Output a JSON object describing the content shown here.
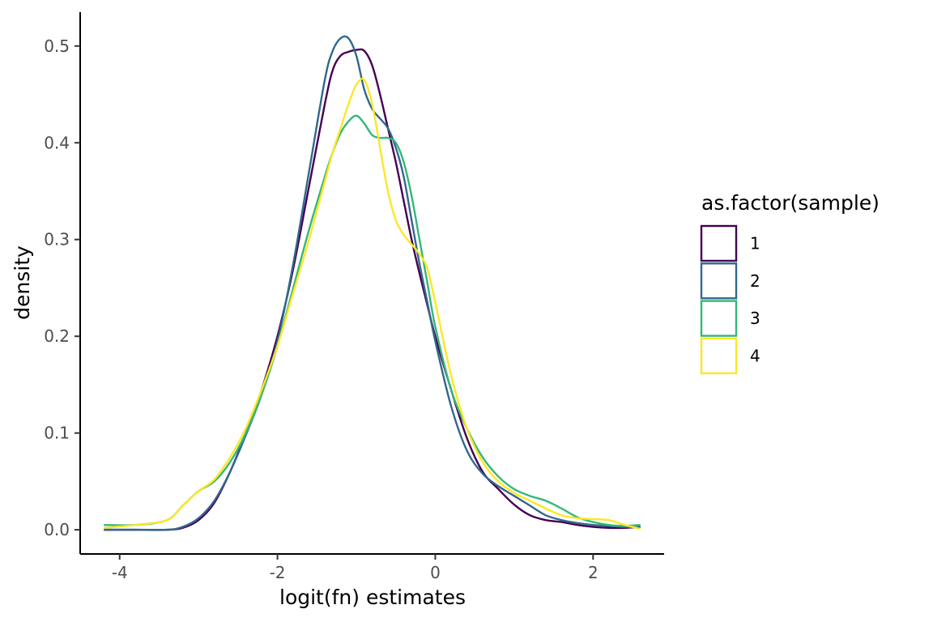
{
  "chart_data": {
    "type": "line",
    "title": "",
    "xlabel": "logit(fn) estimates",
    "ylabel": "density",
    "xlim": [
      -4.5,
      2.9
    ],
    "ylim": [
      -0.025,
      0.535
    ],
    "x_ticks": [
      -4,
      -2,
      0,
      2
    ],
    "y_ticks": [
      0.0,
      0.1,
      0.2,
      0.3,
      0.4,
      0.5
    ],
    "x_tick_labels": [
      "-4",
      "-2",
      "0",
      "2"
    ],
    "y_tick_labels": [
      "0.0",
      "0.1",
      "0.2",
      "0.3",
      "0.4",
      "0.5"
    ],
    "grid": false,
    "legend": {
      "title": "as.factor(sample)",
      "position": "right"
    },
    "series": [
      {
        "name": "1",
        "color": "#440154",
        "x": [
          -4.2,
          -3.8,
          -3.4,
          -3.2,
          -3.0,
          -2.8,
          -2.6,
          -2.4,
          -2.2,
          -2.0,
          -1.8,
          -1.6,
          -1.4,
          -1.3,
          -1.2,
          -1.1,
          -1.0,
          -0.9,
          -0.8,
          -0.7,
          -0.6,
          -0.5,
          -0.4,
          -0.3,
          -0.2,
          -0.1,
          0.0,
          0.2,
          0.4,
          0.6,
          0.8,
          1.0,
          1.2,
          1.4,
          1.6,
          1.8,
          2.0,
          2.2,
          2.4,
          2.6
        ],
        "y": [
          0.0,
          0.0,
          0.0,
          0.002,
          0.01,
          0.028,
          0.06,
          0.1,
          0.145,
          0.2,
          0.27,
          0.355,
          0.44,
          0.475,
          0.49,
          0.494,
          0.496,
          0.495,
          0.48,
          0.45,
          0.415,
          0.38,
          0.34,
          0.3,
          0.265,
          0.232,
          0.2,
          0.145,
          0.095,
          0.06,
          0.042,
          0.026,
          0.015,
          0.01,
          0.008,
          0.005,
          0.003,
          0.002,
          0.002,
          0.003
        ]
      },
      {
        "name": "2",
        "color": "#31688e",
        "x": [
          -4.2,
          -3.8,
          -3.4,
          -3.2,
          -3.0,
          -2.8,
          -2.6,
          -2.4,
          -2.2,
          -2.0,
          -1.8,
          -1.6,
          -1.4,
          -1.3,
          -1.2,
          -1.1,
          -1.0,
          -0.9,
          -0.8,
          -0.7,
          -0.6,
          -0.5,
          -0.4,
          -0.3,
          -0.2,
          -0.1,
          0.0,
          0.2,
          0.4,
          0.6,
          0.8,
          1.0,
          1.2,
          1.4,
          1.6,
          1.8,
          2.0,
          2.2,
          2.4,
          2.6
        ],
        "y": [
          0.0,
          0.0,
          0.0,
          0.003,
          0.012,
          0.03,
          0.06,
          0.098,
          0.14,
          0.195,
          0.275,
          0.37,
          0.465,
          0.495,
          0.508,
          0.508,
          0.49,
          0.455,
          0.435,
          0.425,
          0.415,
          0.395,
          0.365,
          0.32,
          0.275,
          0.235,
          0.195,
          0.128,
          0.082,
          0.058,
          0.045,
          0.035,
          0.025,
          0.015,
          0.01,
          0.007,
          0.005,
          0.004,
          0.003,
          0.003
        ]
      },
      {
        "name": "3",
        "color": "#35b779",
        "x": [
          -4.2,
          -3.8,
          -3.4,
          -3.2,
          -3.0,
          -2.8,
          -2.6,
          -2.4,
          -2.2,
          -2.0,
          -1.8,
          -1.6,
          -1.4,
          -1.3,
          -1.2,
          -1.1,
          -1.0,
          -0.9,
          -0.8,
          -0.7,
          -0.6,
          -0.5,
          -0.4,
          -0.3,
          -0.2,
          -0.1,
          0.0,
          0.2,
          0.4,
          0.6,
          0.8,
          1.0,
          1.2,
          1.4,
          1.6,
          1.8,
          2.0,
          2.2,
          2.4,
          2.6
        ],
        "y": [
          0.005,
          0.005,
          0.01,
          0.025,
          0.04,
          0.05,
          0.07,
          0.1,
          0.14,
          0.19,
          0.25,
          0.31,
          0.365,
          0.39,
          0.41,
          0.422,
          0.428,
          0.42,
          0.408,
          0.405,
          0.405,
          0.4,
          0.38,
          0.345,
          0.3,
          0.255,
          0.21,
          0.145,
          0.105,
          0.075,
          0.055,
          0.042,
          0.035,
          0.03,
          0.022,
          0.013,
          0.008,
          0.005,
          0.004,
          0.005
        ]
      },
      {
        "name": "4",
        "color": "#fde725",
        "x": [
          -4.2,
          -3.8,
          -3.4,
          -3.2,
          -3.0,
          -2.8,
          -2.6,
          -2.4,
          -2.2,
          -2.0,
          -1.8,
          -1.6,
          -1.4,
          -1.3,
          -1.2,
          -1.1,
          -1.0,
          -0.9,
          -0.8,
          -0.7,
          -0.6,
          -0.5,
          -0.4,
          -0.3,
          -0.2,
          -0.1,
          0.0,
          0.2,
          0.4,
          0.6,
          0.8,
          1.0,
          1.2,
          1.4,
          1.6,
          1.8,
          2.0,
          2.2,
          2.4,
          2.6
        ],
        "y": [
          0.002,
          0.005,
          0.01,
          0.025,
          0.04,
          0.052,
          0.075,
          0.105,
          0.145,
          0.19,
          0.245,
          0.3,
          0.36,
          0.39,
          0.415,
          0.44,
          0.46,
          0.465,
          0.44,
          0.395,
          0.35,
          0.32,
          0.305,
          0.295,
          0.285,
          0.27,
          0.235,
          0.16,
          0.105,
          0.07,
          0.05,
          0.038,
          0.03,
          0.022,
          0.015,
          0.012,
          0.011,
          0.01,
          0.005,
          0.001
        ]
      }
    ]
  }
}
